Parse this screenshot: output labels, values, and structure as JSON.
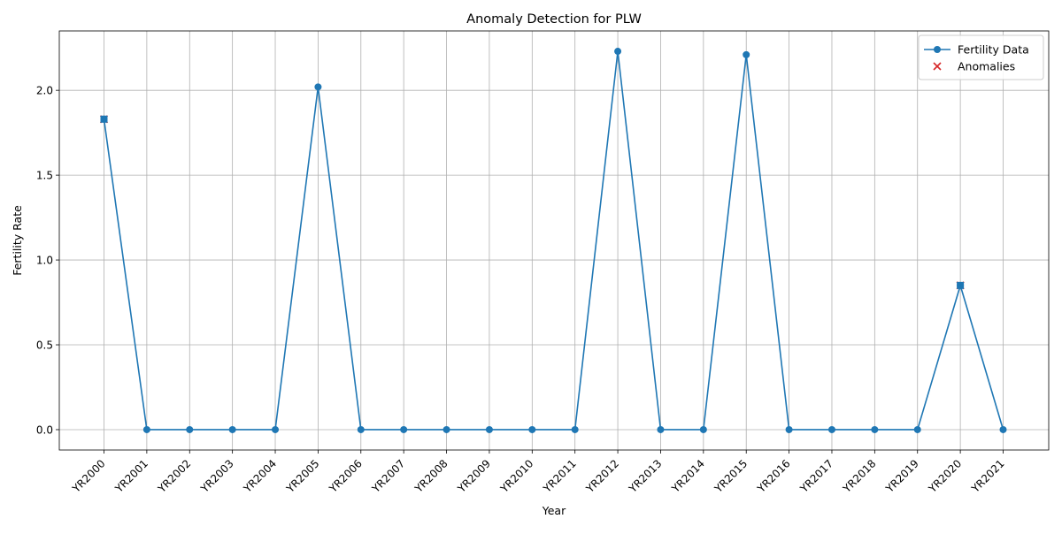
{
  "chart_data": {
    "type": "line",
    "title": "Anomaly Detection for PLW",
    "xlabel": "Year",
    "ylabel": "Fertility Rate",
    "categories": [
      "YR2000",
      "YR2001",
      "YR2002",
      "YR2003",
      "YR2004",
      "YR2005",
      "YR2006",
      "YR2007",
      "YR2008",
      "YR2009",
      "YR2010",
      "YR2011",
      "YR2012",
      "YR2013",
      "YR2014",
      "YR2015",
      "YR2016",
      "YR2017",
      "YR2018",
      "YR2019",
      "YR2020",
      "YR2021"
    ],
    "series": [
      {
        "name": "Fertility Data",
        "color": "#1f77b4",
        "marker": "circle",
        "values": [
          1.83,
          0,
          0,
          0,
          0,
          2.02,
          0,
          0,
          0,
          0,
          0,
          0,
          2.23,
          0,
          0,
          2.21,
          0,
          0,
          0,
          0,
          0.85,
          0
        ]
      }
    ],
    "anomalies": {
      "name": "Anomalies",
      "color": "#d62728",
      "marker": "x",
      "categories": [
        "YR2000",
        "YR2020"
      ],
      "values": [
        1.83,
        0.85
      ]
    },
    "ylim": [
      -0.12,
      2.35
    ],
    "yticks": [
      0.0,
      0.5,
      1.0,
      1.5,
      2.0
    ],
    "ytick_labels": [
      "0.0",
      "0.5",
      "1.0",
      "1.5",
      "2.0"
    ],
    "grid": true,
    "legend_position": "upper right"
  }
}
